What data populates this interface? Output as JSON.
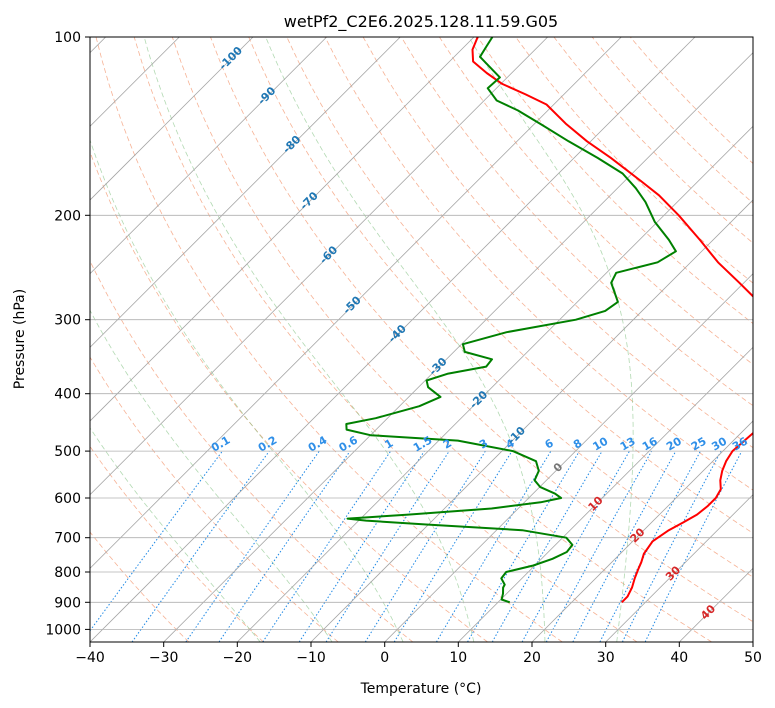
{
  "chart_data": {
    "type": "line",
    "subtype": "skew-t log-p",
    "title": "wetPf2_C2E6.2025.128.11.59.G05",
    "xlabel": "Temperature (°C)",
    "ylabel": "Pressure (hPa)",
    "xlim": [
      -40,
      50
    ],
    "ylim": [
      1050,
      100
    ],
    "yscale": "log",
    "grid": true,
    "xticks": [
      -40,
      -30,
      -20,
      -10,
      0,
      10,
      20,
      30,
      40,
      50
    ],
    "yticks": [
      100,
      200,
      300,
      400,
      500,
      600,
      700,
      800,
      900,
      1000
    ],
    "isotherms": [
      -120,
      -110,
      -100,
      -90,
      -80,
      -70,
      -60,
      -50,
      -40,
      -30,
      -20,
      -10,
      0,
      10,
      20,
      30,
      40,
      50,
      60,
      70
    ],
    "mixing_ratio_lines": [
      0.1,
      0.2,
      0.4,
      0.6,
      1,
      1.5,
      2,
      3,
      4,
      6,
      8,
      10,
      13,
      16,
      20,
      25,
      30,
      36
    ],
    "dry_adiabats": [
      -30,
      -20,
      -10,
      0,
      10,
      20,
      30,
      40,
      50,
      60,
      70,
      80,
      90,
      100,
      110,
      120,
      130,
      140,
      150,
      160
    ],
    "moist_adiabats": [
      -20,
      -10,
      0,
      10,
      20,
      30
    ],
    "isotherm_labels": [
      {
        "t": -100,
        "p": 108,
        "text": "-100"
      },
      {
        "t": -90,
        "p": 125,
        "text": "-90"
      },
      {
        "t": -80,
        "p": 151,
        "text": "-80"
      },
      {
        "t": -70,
        "p": 188,
        "text": "-70"
      },
      {
        "t": -60,
        "p": 232,
        "text": "-60"
      },
      {
        "t": -50,
        "p": 282,
        "text": "-50"
      },
      {
        "t": -40,
        "p": 315,
        "text": "-40"
      },
      {
        "t": -30,
        "p": 358,
        "text": "-30"
      },
      {
        "t": -20,
        "p": 407,
        "text": "-20"
      },
      {
        "t": -10,
        "p": 468,
        "text": "-10"
      },
      {
        "t": 0,
        "p": 530,
        "text": "0"
      },
      {
        "t": 10,
        "p": 610,
        "text": "10"
      },
      {
        "t": 20,
        "p": 690,
        "text": "20"
      },
      {
        "t": 30,
        "p": 800,
        "text": "30"
      },
      {
        "t": 40,
        "p": 930,
        "text": "40"
      }
    ],
    "series": [
      {
        "role": "temperature",
        "color": "#ff0000",
        "points": [
          {
            "p": 900,
            "t": 26.8
          },
          {
            "p": 880,
            "t": 26.8
          },
          {
            "p": 850,
            "t": 26.2
          },
          {
            "p": 820,
            "t": 25.3
          },
          {
            "p": 790,
            "t": 24.5
          },
          {
            "p": 770,
            "t": 24.0
          },
          {
            "p": 745,
            "t": 23.2
          },
          {
            "p": 710,
            "t": 22.7
          },
          {
            "p": 680,
            "t": 23.4
          },
          {
            "p": 660,
            "t": 24.3
          },
          {
            "p": 640,
            "t": 25.1
          },
          {
            "p": 620,
            "t": 25.4
          },
          {
            "p": 600,
            "t": 25.4
          },
          {
            "p": 580,
            "t": 24.9
          },
          {
            "p": 560,
            "t": 23.6
          },
          {
            "p": 540,
            "t": 22.6
          },
          {
            "p": 520,
            "t": 21.8
          },
          {
            "p": 500,
            "t": 21.3
          },
          {
            "p": 470,
            "t": 21.6
          },
          {
            "p": 440,
            "t": 22.0
          },
          {
            "p": 410,
            "t": 22.3
          },
          {
            "p": 380,
            "t": 20.7
          },
          {
            "p": 350,
            "t": 17.6
          },
          {
            "p": 320,
            "t": 12.7
          },
          {
            "p": 300,
            "t": 9.0
          },
          {
            "p": 280,
            "t": 4.6
          },
          {
            "p": 260,
            "t": -0.6
          },
          {
            "p": 240,
            "t": -6.3
          },
          {
            "p": 220,
            "t": -11.8
          },
          {
            "p": 200,
            "t": -18.0
          },
          {
            "p": 185,
            "t": -23.4
          },
          {
            "p": 175,
            "t": -27.8
          },
          {
            "p": 160,
            "t": -35.0
          },
          {
            "p": 150,
            "t": -40.5
          },
          {
            "p": 140,
            "t": -45.8
          },
          {
            "p": 130,
            "t": -51.0
          },
          {
            "p": 125,
            "t": -55.2
          },
          {
            "p": 120,
            "t": -59.8
          },
          {
            "p": 115,
            "t": -63.4
          },
          {
            "p": 110,
            "t": -66.8
          },
          {
            "p": 105,
            "t": -68.5
          },
          {
            "p": 100,
            "t": -69.5
          }
        ]
      },
      {
        "role": "dewpoint",
        "color": "#008000",
        "points": [
          {
            "p": 900,
            "t": 11.6
          },
          {
            "p": 890,
            "t": 10.1
          },
          {
            "p": 870,
            "t": 9.5
          },
          {
            "p": 850,
            "t": 8.7
          },
          {
            "p": 840,
            "t": 8.5
          },
          {
            "p": 820,
            "t": 7.2
          },
          {
            "p": 800,
            "t": 7.0
          },
          {
            "p": 780,
            "t": 9.8
          },
          {
            "p": 760,
            "t": 11.5
          },
          {
            "p": 740,
            "t": 12.5
          },
          {
            "p": 720,
            "t": 12.3
          },
          {
            "p": 700,
            "t": 10.5
          },
          {
            "p": 680,
            "t": 3.5
          },
          {
            "p": 665,
            "t": -10.3
          },
          {
            "p": 655,
            "t": -19.0
          },
          {
            "p": 650,
            "t": -21.8
          },
          {
            "p": 640,
            "t": -14.1
          },
          {
            "p": 625,
            "t": -3.6
          },
          {
            "p": 610,
            "t": 2.2
          },
          {
            "p": 600,
            "t": 4.4
          },
          {
            "p": 590,
            "t": 3.0
          },
          {
            "p": 575,
            "t": 0.1
          },
          {
            "p": 560,
            "t": -1.6
          },
          {
            "p": 540,
            "t": -2.3
          },
          {
            "p": 520,
            "t": -4.0
          },
          {
            "p": 500,
            "t": -8.5
          },
          {
            "p": 480,
            "t": -17.4
          },
          {
            "p": 470,
            "t": -30.0
          },
          {
            "p": 460,
            "t": -34.0
          },
          {
            "p": 450,
            "t": -34.8
          },
          {
            "p": 440,
            "t": -31.6
          },
          {
            "p": 430,
            "t": -29.5
          },
          {
            "p": 420,
            "t": -27.3
          },
          {
            "p": 405,
            "t": -25.7
          },
          {
            "p": 390,
            "t": -28.7
          },
          {
            "p": 380,
            "t": -29.8
          },
          {
            "p": 370,
            "t": -27.8
          },
          {
            "p": 360,
            "t": -23.6
          },
          {
            "p": 350,
            "t": -23.8
          },
          {
            "p": 340,
            "t": -28.5
          },
          {
            "p": 330,
            "t": -29.8
          },
          {
            "p": 315,
            "t": -25.5
          },
          {
            "p": 300,
            "t": -17.8
          },
          {
            "p": 290,
            "t": -15.0
          },
          {
            "p": 280,
            "t": -14.5
          },
          {
            "p": 260,
            "t": -18.0
          },
          {
            "p": 250,
            "t": -18.7
          },
          {
            "p": 240,
            "t": -14.5
          },
          {
            "p": 230,
            "t": -13.5
          },
          {
            "p": 220,
            "t": -16.0
          },
          {
            "p": 205,
            "t": -20.4
          },
          {
            "p": 190,
            "t": -24.3
          },
          {
            "p": 180,
            "t": -27.5
          },
          {
            "p": 170,
            "t": -31.3
          },
          {
            "p": 160,
            "t": -36.8
          },
          {
            "p": 150,
            "t": -43.0
          },
          {
            "p": 140,
            "t": -49.3
          },
          {
            "p": 133,
            "t": -54.1
          },
          {
            "p": 128,
            "t": -58.3
          },
          {
            "p": 122,
            "t": -61.2
          },
          {
            "p": 117,
            "t": -61.0
          },
          {
            "p": 112,
            "t": -64.0
          },
          {
            "p": 108,
            "t": -66.5
          },
          {
            "p": 104,
            "t": -67.0
          },
          {
            "p": 100,
            "t": -67.5
          }
        ]
      }
    ]
  }
}
